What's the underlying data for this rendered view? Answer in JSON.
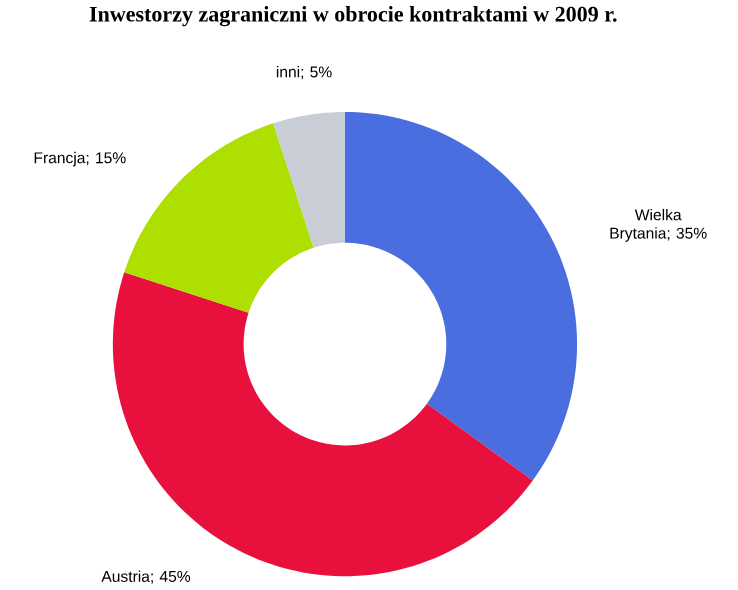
{
  "chart_data": {
    "type": "donut",
    "title": "Inwestorzy zagraniczni w obrocie kontraktami w 2009 r.",
    "categories": [
      "Wielka Brytania; 35%",
      "Austria; 45%",
      "Francja; 15%",
      "inni; 5%"
    ],
    "values": [
      35,
      45,
      15,
      5
    ],
    "colors": [
      "#4a6ee0",
      "#e8113d",
      "#addf00",
      "#c9cdd6"
    ],
    "legend": false
  }
}
